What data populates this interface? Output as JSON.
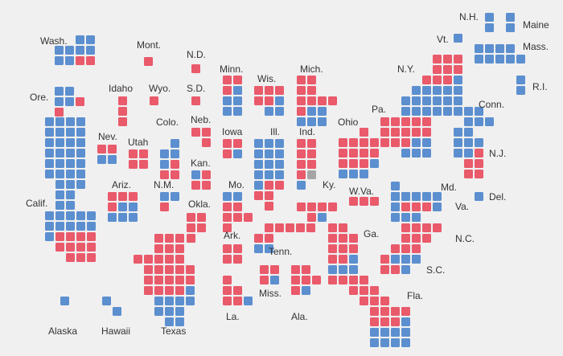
{
  "chart_data": {
    "type": "tile-cartogram",
    "title": "",
    "legend": null,
    "party_colors": {
      "R": "#e95a6b",
      "D": "#5c8fcf",
      "Other": "#a5a5a5"
    },
    "states": [
      {
        "name": "Wash.",
        "R": 4,
        "D": 8,
        "Other": 0
      },
      {
        "name": "Ore.",
        "R": 2,
        "D": 4,
        "Other": 0
      },
      {
        "name": "Calif.",
        "R": 11,
        "D": 42,
        "Other": 0
      },
      {
        "name": "Nev.",
        "R": 2,
        "D": 2,
        "Other": 0
      },
      {
        "name": "Idaho",
        "R": 3,
        "D": 0,
        "Other": 0
      },
      {
        "name": "Mont.",
        "R": 1,
        "D": 0,
        "Other": 0
      },
      {
        "name": "Wyo.",
        "R": 1,
        "D": 0,
        "Other": 0
      },
      {
        "name": "Utah",
        "R": 4,
        "D": 0,
        "Other": 0
      },
      {
        "name": "Ariz.",
        "R": 4,
        "D": 5,
        "Other": 0
      },
      {
        "name": "Colo.",
        "R": 3,
        "D": 4,
        "Other": 0
      },
      {
        "name": "N.M.",
        "R": 1,
        "D": 2,
        "Other": 0
      },
      {
        "name": "N.D.",
        "R": 1,
        "D": 0,
        "Other": 0
      },
      {
        "name": "S.D.",
        "R": 1,
        "D": 0,
        "Other": 0
      },
      {
        "name": "Neb.",
        "R": 3,
        "D": 0,
        "Other": 0
      },
      {
        "name": "Kan.",
        "R": 3,
        "D": 1,
        "Other": 0
      },
      {
        "name": "Okla.",
        "R": 5,
        "D": 0,
        "Other": 0
      },
      {
        "name": "Texas",
        "R": 25,
        "D": 11,
        "Other": 0
      },
      {
        "name": "Minn.",
        "R": 3,
        "D": 5,
        "Other": 0
      },
      {
        "name": "Iowa",
        "R": 3,
        "D": 1,
        "Other": 0
      },
      {
        "name": "Mo.",
        "R": 6,
        "D": 2,
        "Other": 0
      },
      {
        "name": "Ark.",
        "R": 4,
        "D": 0,
        "Other": 0
      },
      {
        "name": "La.",
        "R": 5,
        "D": 1,
        "Other": 0
      },
      {
        "name": "Wis.",
        "R": 5,
        "D": 3,
        "Other": 0
      },
      {
        "name": "Ill.",
        "R": 5,
        "D": 13,
        "Other": 0
      },
      {
        "name": "Mich.",
        "R": 9,
        "D": 5,
        "Other": 0
      },
      {
        "name": "Ind.",
        "R": 7,
        "D": 1,
        "Other": 1
      },
      {
        "name": "Ohio",
        "R": 12,
        "D": 4,
        "Other": 0
      },
      {
        "name": "Ky.",
        "R": 5,
        "D": 1,
        "Other": 0
      },
      {
        "name": "Tenn.",
        "R": 7,
        "D": 2,
        "Other": 0
      },
      {
        "name": "Miss.",
        "R": 3,
        "D": 1,
        "Other": 0
      },
      {
        "name": "Ala.",
        "R": 6,
        "D": 1,
        "Other": 0
      },
      {
        "name": "Ga.",
        "R": 10,
        "D": 4,
        "Other": 0
      },
      {
        "name": "Fla.",
        "R": 17,
        "D": 9,
        "Other": 1
      },
      {
        "name": "S.C.",
        "R": 6,
        "D": 1,
        "Other": 0
      },
      {
        "name": "N.C.",
        "R": 10,
        "D": 3,
        "Other": 0
      },
      {
        "name": "Va.",
        "R": 7,
        "D": 4,
        "Other": 0
      },
      {
        "name": "W.Va.",
        "R": 3,
        "D": 0,
        "Other": 0
      },
      {
        "name": "Md.",
        "R": 1,
        "D": 7,
        "Other": 0
      },
      {
        "name": "Del.",
        "R": 0,
        "D": 1,
        "Other": 0
      },
      {
        "name": "Pa.",
        "R": 13,
        "D": 5,
        "Other": 0
      },
      {
        "name": "N.Y.",
        "R": 9,
        "D": 18,
        "Other": 0
      },
      {
        "name": "N.J.",
        "R": 5,
        "D": 7,
        "Other": 0
      },
      {
        "name": "Conn.",
        "R": 0,
        "D": 5,
        "Other": 0
      },
      {
        "name": "R.I.",
        "R": 0,
        "D": 2,
        "Other": 0
      },
      {
        "name": "Mass.",
        "R": 0,
        "D": 9,
        "Other": 0
      },
      {
        "name": "Vt.",
        "R": 0,
        "D": 1,
        "Other": 0
      },
      {
        "name": "N.H.",
        "R": 0,
        "D": 2,
        "Other": 0
      },
      {
        "name": "Maine",
        "R": 0,
        "D": 2,
        "Other": 0
      },
      {
        "name": "Alaska",
        "R": 0,
        "D": 1,
        "Other": 0
      },
      {
        "name": "Hawaii",
        "R": 0,
        "D": 2,
        "Other": 0
      }
    ]
  }
}
